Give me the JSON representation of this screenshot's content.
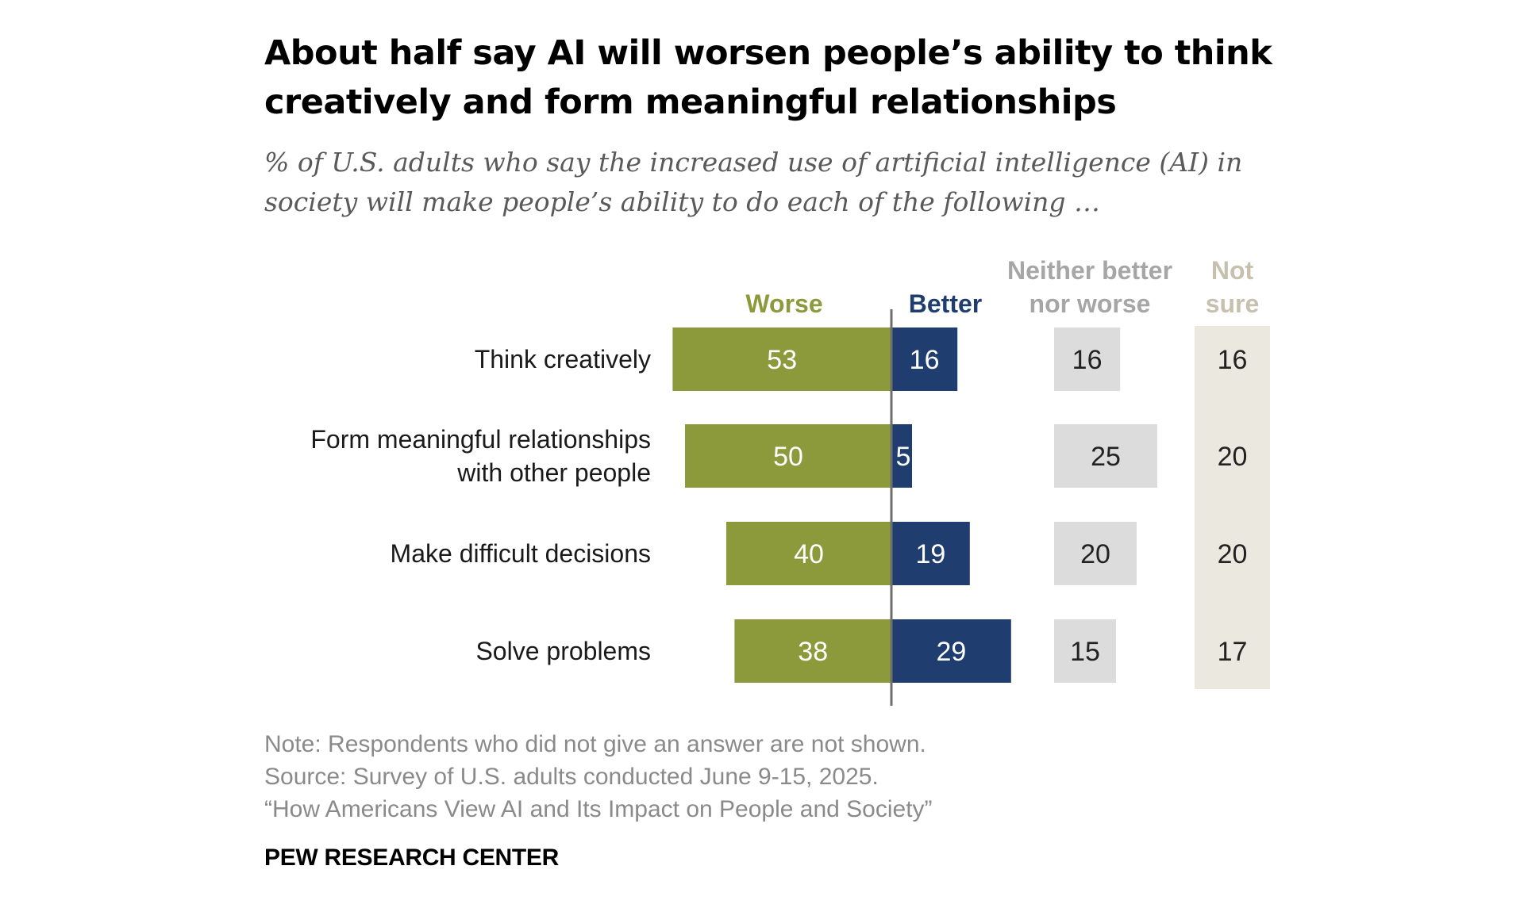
{
  "header": {
    "title_line1": "About half say AI will worsen people’s ability to think",
    "title_line2": "creatively and form meaningful relationships",
    "subtitle_line1": "% of U.S. adults who say the increased use of artificial intelligence (AI) in",
    "subtitle_line2": "society will make people’s ability to do each of the following …"
  },
  "chart_data": {
    "type": "bar",
    "orientation": "horizontal-diverging",
    "title": "About half say AI will worsen people’s ability to think creatively and form meaningful relationships",
    "unit": "%",
    "categories": [
      [
        "Think creatively"
      ],
      [
        "Form meaningful relationships",
        "with other people"
      ],
      [
        "Make difficult decisions"
      ],
      [
        "Solve problems"
      ]
    ],
    "series": [
      {
        "name": "Worse",
        "label_lines": [
          "Worse"
        ],
        "color": "#8c9a3b",
        "label_color": "#8c9a3b",
        "text_color": "#ffffff",
        "values": [
          53,
          50,
          40,
          38
        ]
      },
      {
        "name": "Better",
        "label_lines": [
          "Better"
        ],
        "color": "#1f3d6e",
        "label_color": "#1f3d6e",
        "text_color": "#ffffff",
        "values": [
          16,
          5,
          19,
          29
        ]
      },
      {
        "name": "Neither better nor worse",
        "label_lines": [
          "Neither better",
          "nor worse"
        ],
        "color": "#dcdcdc",
        "label_color": "#a6a6a6",
        "text_color": "#222222",
        "values": [
          16,
          25,
          20,
          15
        ]
      },
      {
        "name": "Not sure",
        "label_lines": [
          "Not",
          "sure"
        ],
        "color": "#ebe8e0",
        "label_color": "#c8c0ae",
        "text_color": "#222222",
        "values": [
          16,
          20,
          20,
          17
        ]
      }
    ]
  },
  "footer": {
    "note": "Note: Respondents who did not give an answer are not shown.",
    "source": "Source: Survey of U.S. adults conducted June 9-15, 2025.",
    "report": "“How Americans View AI and Its Impact on People and Society”",
    "brand": "PEW RESEARCH CENTER"
  }
}
